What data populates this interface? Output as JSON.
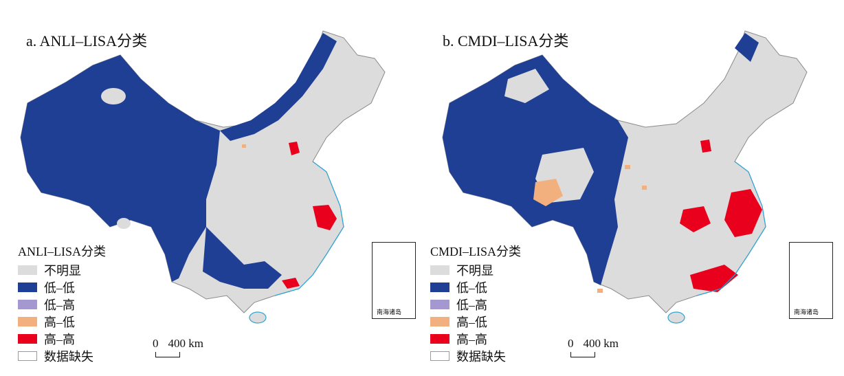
{
  "panels": [
    {
      "title": "a. ANLI–LISA分类",
      "legend_title": "ANLI–LISA分类",
      "scale": {
        "zero": "0",
        "distance": "400 km"
      },
      "inset_label": "南海诸岛"
    },
    {
      "title": "b. CMDI–LISA分类",
      "legend_title": "CMDI–LISA分类",
      "scale": {
        "zero": "0",
        "distance": "400 km"
      },
      "inset_label": "南海诸岛"
    }
  ],
  "legend_items": [
    {
      "label": "不明显",
      "color": "#dcdcdc"
    },
    {
      "label": "低–低",
      "color": "#1f3f95"
    },
    {
      "label": "低–高",
      "color": "#a597cf"
    },
    {
      "label": "高–低",
      "color": "#f2b07e"
    },
    {
      "label": "高–高",
      "color": "#e8001c"
    },
    {
      "label": "数据缺失",
      "color": "#ffffff"
    }
  ],
  "colors": {
    "not_significant": "#dcdcdc",
    "low_low": "#1f3f95",
    "low_high": "#a597cf",
    "high_low": "#f2b07e",
    "high_high": "#e8001c",
    "boundary": "#8a8a8a",
    "coast": "#29a3d6"
  }
}
